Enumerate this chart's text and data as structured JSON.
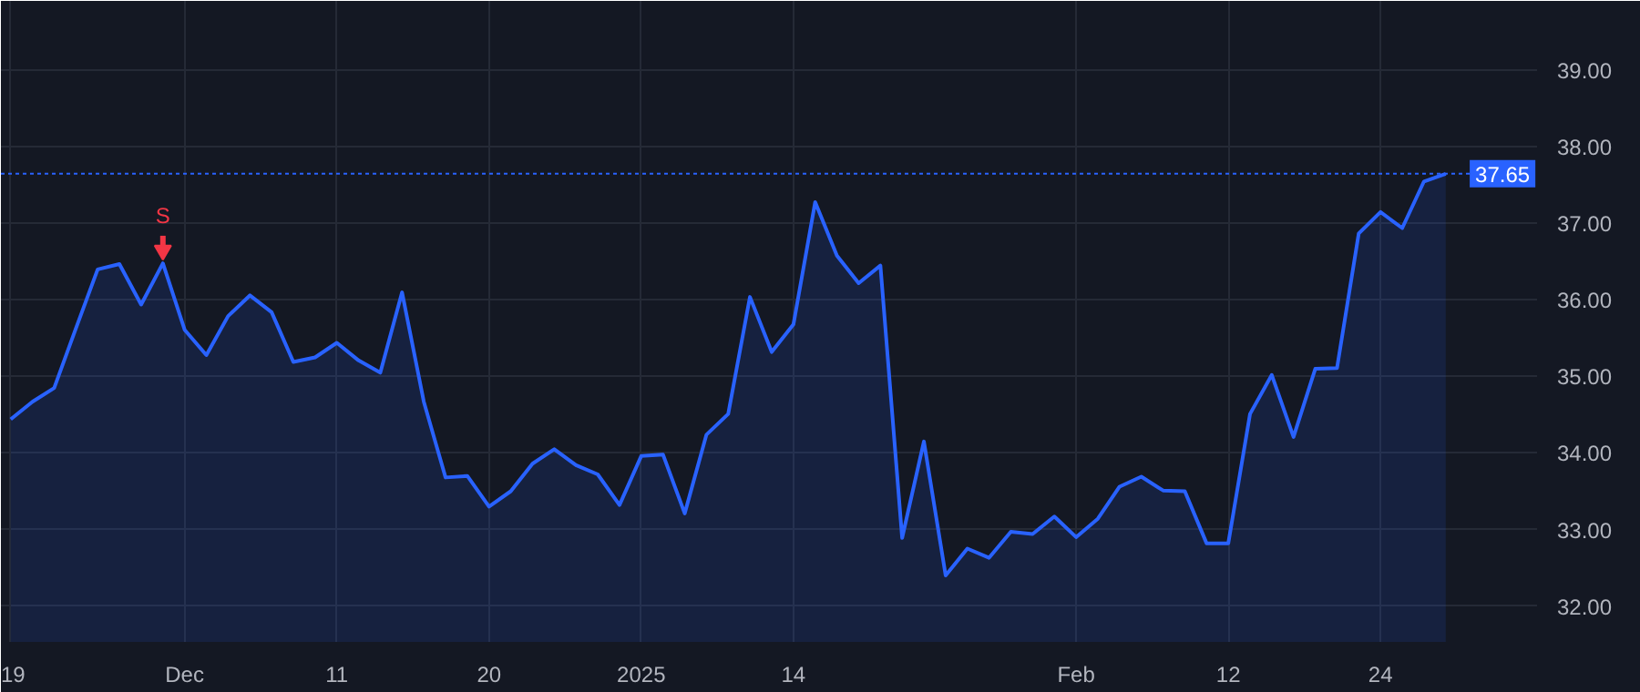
{
  "chart_data": {
    "type": "area",
    "categories": [
      "19",
      null,
      null,
      null,
      null,
      null,
      null,
      null,
      "Dec",
      null,
      null,
      null,
      null,
      null,
      null,
      "11",
      null,
      null,
      null,
      null,
      null,
      null,
      "20",
      null,
      null,
      null,
      null,
      null,
      null,
      "2025",
      null,
      null,
      null,
      null,
      null,
      null,
      "14",
      null,
      null,
      null,
      null,
      null,
      null,
      null,
      null,
      null,
      null,
      null,
      null,
      "Feb",
      null,
      null,
      null,
      null,
      null,
      null,
      "12",
      null,
      null,
      null,
      null,
      null,
      null,
      "24",
      null,
      null,
      null
    ],
    "series": [
      {
        "color": "#2962ff",
        "values": [
          34.44,
          34.67,
          34.85,
          35.63,
          36.4,
          36.47,
          35.94,
          36.48,
          35.61,
          35.28,
          35.79,
          36.06,
          35.84,
          35.19,
          35.25,
          35.44,
          35.21,
          35.05,
          36.1,
          34.67,
          33.68,
          33.7,
          33.3,
          33.5,
          33.86,
          34.05,
          33.84,
          33.72,
          33.32,
          33.96,
          33.98,
          33.21,
          34.24,
          34.51,
          36.04,
          35.32,
          35.68,
          37.28,
          36.58,
          36.22,
          36.45,
          32.89,
          34.15,
          32.4,
          32.75,
          32.63,
          32.97,
          32.94,
          33.17,
          32.9,
          33.14,
          33.56,
          33.69,
          33.51,
          33.5,
          32.82,
          32.82,
          34.51,
          35.02,
          34.21,
          35.1,
          35.11,
          36.87,
          37.15,
          36.94,
          37.55,
          37.65
        ]
      }
    ],
    "ylim": [
      31.53,
      39.91
    ],
    "yticks": [
      {
        "value": 32,
        "label": "32.00"
      },
      {
        "value": 33,
        "label": "33.00"
      },
      {
        "value": 34,
        "label": "34.00"
      },
      {
        "value": 35,
        "label": "35.00"
      },
      {
        "value": 36,
        "label": "36.00"
      },
      {
        "value": 37,
        "label": "37.00"
      },
      {
        "value": 38,
        "label": "38.00"
      },
      {
        "value": 39,
        "label": "39.00"
      }
    ],
    "ref_lines": [
      {
        "axis": "y",
        "value": 37.65,
        "label": "37.65",
        "color": "#2962ff",
        "line_style": "dotted"
      }
    ],
    "annotations": [
      {
        "text": "S",
        "y": 36.48
      }
    ],
    "grid": true,
    "marker": "none",
    "line_style": "solid"
  }
}
